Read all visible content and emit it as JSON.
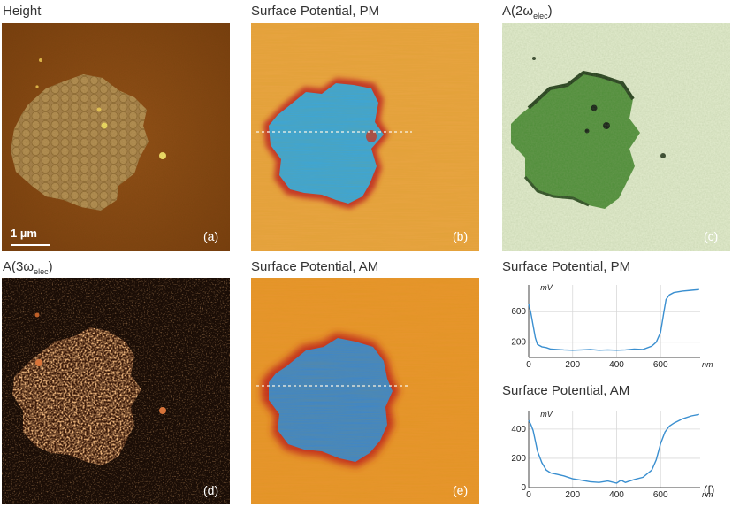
{
  "panels": {
    "a": {
      "title": "Height",
      "label": "(a)",
      "scale": "1 µm"
    },
    "b": {
      "title": "Surface Potential, PM",
      "label": "(b)"
    },
    "c": {
      "title_pre": "A(2ω",
      "title_sub": "elec",
      "title_post": ")",
      "label": "(c)"
    },
    "d": {
      "title_pre": "A(3ω",
      "title_sub": "elec",
      "title_post": ")",
      "label": "(d)"
    },
    "e": {
      "title": "Surface Potential, AM",
      "label": "(e)"
    },
    "f": {
      "label": "(f)"
    }
  },
  "colors": {
    "height_bg": "#8a4a14",
    "height_island": "#b08a4a",
    "pm_bg": "#e8a040",
    "pm_island": "#3ea6dc",
    "pm_rim": "#c0302a",
    "c_bg": "#e6efd2",
    "c_island": "#4a8a34",
    "d_bg": "#1a0e06",
    "d_spots": "#c86a2a",
    "am_bg": "#e8962e",
    "am_island": "#3a88d0",
    "line": "#3a8fd0"
  },
  "chart_data": [
    {
      "type": "line",
      "title": "Surface Potential, PM",
      "xlabel": "nm",
      "ylabel": "mV",
      "xlim": [
        0,
        780
      ],
      "ylim": [
        0,
        950
      ],
      "x_ticks": [
        0,
        200,
        400,
        600
      ],
      "y_ticks": [
        200,
        600
      ],
      "series": [
        {
          "x": [
            0,
            10,
            20,
            30,
            40,
            60,
            80,
            100,
            130,
            160,
            200,
            240,
            280,
            320,
            360,
            400,
            440,
            480,
            520,
            560,
            580,
            600,
            615,
            625,
            640,
            660,
            700,
            740,
            775
          ],
          "y": [
            700,
            580,
            420,
            260,
            170,
            140,
            130,
            110,
            105,
            100,
            95,
            100,
            105,
            95,
            100,
            95,
            100,
            110,
            105,
            150,
            200,
            330,
            600,
            760,
            820,
            850,
            870,
            880,
            890
          ]
        }
      ]
    },
    {
      "type": "line",
      "title": "Surface Potential, AM",
      "xlabel": "nm",
      "ylabel": "mV",
      "xlim": [
        0,
        780
      ],
      "ylim": [
        0,
        520
      ],
      "x_ticks": [
        0,
        200,
        400,
        600
      ],
      "y_ticks": [
        0,
        200,
        400
      ],
      "series": [
        {
          "x": [
            0,
            10,
            20,
            30,
            40,
            60,
            80,
            100,
            130,
            160,
            200,
            240,
            280,
            320,
            360,
            400,
            420,
            440,
            480,
            520,
            560,
            580,
            600,
            620,
            640,
            660,
            700,
            740,
            775
          ],
          "y": [
            460,
            430,
            390,
            320,
            250,
            170,
            120,
            100,
            90,
            80,
            60,
            50,
            40,
            35,
            45,
            30,
            50,
            35,
            55,
            70,
            120,
            190,
            300,
            380,
            420,
            440,
            470,
            490,
            500
          ]
        }
      ]
    }
  ]
}
